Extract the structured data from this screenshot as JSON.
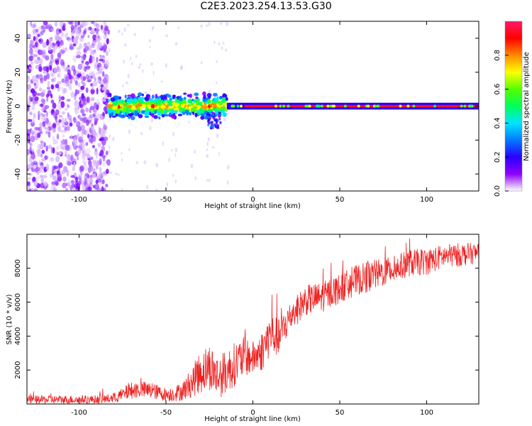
{
  "title": "C2E3.2023.254.13.53.G30",
  "colors": {
    "snr_line": "#ee2222",
    "axes": "#000000",
    "colormap": [
      "#ffffff",
      "#8f00ff",
      "#2a00ff",
      "#007bff",
      "#00e5ff",
      "#00ff5a",
      "#55ff00",
      "#ffff00",
      "#ff8800",
      "#ff0000",
      "#ff1a66"
    ]
  },
  "chart_data": [
    {
      "type": "heatmap",
      "xlabel": "Height of straight line (km)",
      "ylabel": "Frequency (Hz)",
      "xlim": [
        -130,
        130
      ],
      "ylim": [
        -50,
        50
      ],
      "xticks": [
        -100,
        -50,
        0,
        50,
        100
      ],
      "xtick_labels": [
        "-100",
        "-50",
        "0",
        "50",
        "100"
      ],
      "yticks": [
        -40,
        -20,
        0,
        20,
        40
      ],
      "ytick_labels": [
        "-40",
        "-20",
        "0",
        "20",
        "40"
      ],
      "colorbar": {
        "label": "Normalized spectral amplitude",
        "range": [
          0.0,
          1.0
        ],
        "ticks": [
          0.0,
          0.2,
          0.4,
          0.6,
          0.8
        ],
        "tick_labels": [
          "0.0",
          "0.2",
          "0.4",
          "0.6",
          "0.8"
        ]
      },
      "features": {
        "noise_region_x": [
          -130,
          -83
        ],
        "signal_onset_x": -83,
        "signal_center_freq": 0,
        "broad_band_x": [
          -83,
          -15
        ],
        "broad_band_halfwidth": 6,
        "narrow_tone_x": [
          -15,
          130
        ],
        "narrow_tone_halfwidth": 2
      }
    },
    {
      "type": "line",
      "xlabel": "Height of straight line (km)",
      "ylabel": "SNR (10 * v/v)",
      "xlim": [
        -130,
        130
      ],
      "ylim": [
        0,
        10000
      ],
      "xticks": [
        -100,
        -50,
        0,
        50,
        100
      ],
      "xtick_labels": [
        "-100",
        "-50",
        "0",
        "50",
        "100"
      ],
      "yticks": [
        2000,
        4000,
        6000,
        8000
      ],
      "ytick_labels": [
        "2000",
        "4000",
        "6000",
        "8000"
      ],
      "series": [
        {
          "x": [
            -130,
            -120,
            -110,
            -100,
            -90,
            -80,
            -75,
            -70,
            -65,
            -60,
            -55,
            -50,
            -45,
            -40,
            -35,
            -30,
            -25,
            -20,
            -15,
            -10,
            -5,
            0,
            5,
            10,
            15,
            20,
            25,
            30,
            40,
            50,
            60,
            70,
            80,
            90,
            100,
            110,
            120,
            130
          ],
          "y": [
            250,
            250,
            260,
            260,
            270,
            330,
            550,
            800,
            850,
            800,
            700,
            550,
            600,
            800,
            1300,
            1900,
            2200,
            1600,
            1900,
            2400,
            2800,
            2700,
            3100,
            4100,
            3900,
            4900,
            5500,
            6100,
            6300,
            6800,
            7300,
            7600,
            7900,
            8300,
            8400,
            8700,
            8800,
            8900
          ],
          "spread": [
            250,
            250,
            250,
            250,
            250,
            300,
            400,
            500,
            500,
            500,
            450,
            400,
            450,
            600,
            900,
            1300,
            1400,
            1300,
            1300,
            1300,
            1200,
            1000,
            1200,
            1300,
            1100,
            1000,
            900,
            900,
            900,
            900,
            900,
            900,
            800,
            800,
            800,
            700,
            700,
            600
          ]
        }
      ]
    }
  ]
}
